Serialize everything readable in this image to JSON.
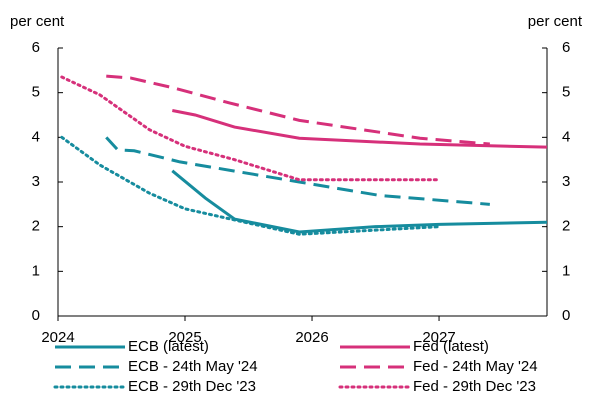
{
  "chart_data": {
    "type": "line",
    "ylabel": "per cent",
    "y2label": "per cent",
    "xlim": [
      2024,
      2027.85
    ],
    "xticks": [
      2024,
      2025,
      2026,
      2027
    ],
    "ylim": [
      0,
      6
    ],
    "yticks": [
      0,
      1,
      2,
      3,
      4,
      5,
      6
    ],
    "y2lim": [
      0,
      6
    ],
    "y2ticks": [
      0,
      1,
      2,
      3,
      4,
      5,
      6
    ],
    "legend": "bottom",
    "series": [
      {
        "name": "ECB (latest)",
        "color": "#168c9e",
        "style": "solid",
        "x": [
          2024.9,
          2025.16,
          2025.39,
          2025.9,
          2026.5,
          2027.0,
          2027.85
        ],
        "values": [
          3.25,
          2.64,
          2.17,
          1.88,
          2.0,
          2.05,
          2.1
        ]
      },
      {
        "name": "Fed (latest)",
        "color": "#d6307a",
        "style": "solid",
        "x": [
          2024.9,
          2025.08,
          2025.39,
          2025.9,
          2026.85,
          2027.85
        ],
        "values": [
          4.6,
          4.5,
          4.23,
          3.98,
          3.85,
          3.78
        ]
      },
      {
        "name": "ECB - 24th May '24",
        "color": "#168c9e",
        "style": "dashed",
        "x": [
          2024.38,
          2024.47,
          2024.6,
          2024.96,
          2025.9,
          2026.53,
          2027.4
        ],
        "values": [
          4.0,
          3.72,
          3.7,
          3.45,
          3.0,
          2.7,
          2.5
        ]
      },
      {
        "name": "Fed - 24th May '24",
        "color": "#d6307a",
        "style": "dashed",
        "x": [
          2024.38,
          2024.57,
          2024.92,
          2025.35,
          2025.9,
          2026.85,
          2027.4
        ],
        "values": [
          5.37,
          5.33,
          5.1,
          4.77,
          4.38,
          3.98,
          3.85
        ]
      },
      {
        "name": "ECB - 29th Dec '23",
        "color": "#168c9e",
        "style": "dotted",
        "x": [
          2024.03,
          2024.33,
          2024.72,
          2025.0,
          2025.39,
          2025.9,
          2027.0
        ],
        "values": [
          4.0,
          3.38,
          2.75,
          2.4,
          2.15,
          1.83,
          2.0
        ]
      },
      {
        "name": "Fed - 29th Dec '23",
        "color": "#d6307a",
        "style": "dotted",
        "x": [
          2024.03,
          2024.33,
          2024.72,
          2025.0,
          2025.39,
          2025.9,
          2027.0
        ],
        "values": [
          5.35,
          4.95,
          4.17,
          3.8,
          3.5,
          3.05,
          3.05
        ]
      }
    ]
  }
}
